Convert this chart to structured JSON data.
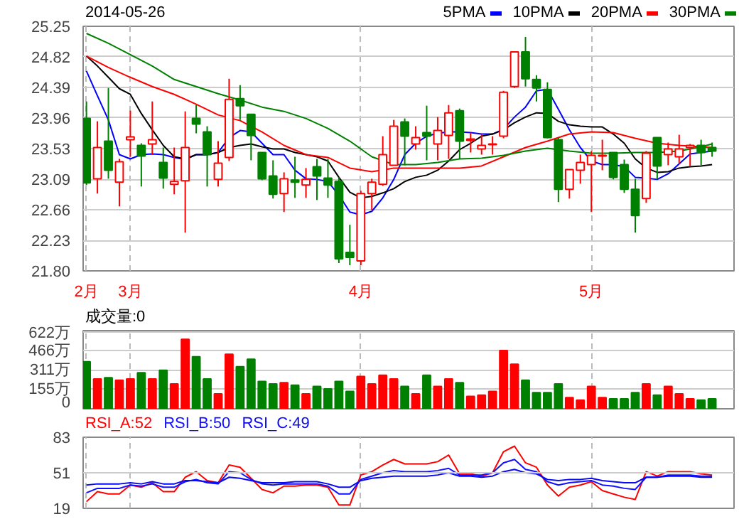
{
  "chart_data": [
    {
      "type": "candlestick",
      "title": "2014-05-26",
      "legend": "top right",
      "grid": true,
      "categories": [
        "2月",
        null,
        null,
        null,
        "3月",
        null,
        null,
        null,
        null,
        null,
        null,
        null,
        null,
        null,
        null,
        null,
        null,
        null,
        null,
        null,
        null,
        null,
        null,
        null,
        null,
        "4月",
        null,
        null,
        null,
        null,
        null,
        null,
        null,
        null,
        null,
        null,
        null,
        null,
        null,
        null,
        null,
        null,
        null,
        null,
        null,
        null,
        "5月",
        null,
        null,
        null,
        null,
        null,
        null,
        null,
        null,
        null,
        null,
        null
      ],
      "ohlc": [
        [
          23.95,
          24.19,
          23.01,
          23.04
        ],
        [
          23.1,
          23.91,
          22.89,
          23.54
        ],
        [
          23.63,
          24.38,
          23.1,
          23.22
        ],
        [
          23.05,
          23.38,
          22.71,
          23.34
        ],
        [
          23.65,
          24.06,
          23.41,
          23.69
        ],
        [
          23.57,
          23.6,
          22.99,
          23.42
        ],
        [
          23.59,
          24.19,
          23.44,
          23.65
        ],
        [
          23.33,
          23.54,
          22.96,
          23.11
        ],
        [
          23.02,
          23.54,
          22.88,
          23.06
        ],
        [
          23.07,
          24.05,
          22.34,
          23.54
        ],
        [
          23.95,
          24.14,
          23.74,
          23.87
        ],
        [
          23.76,
          23.84,
          22.99,
          23.44
        ],
        [
          23.09,
          23.63,
          22.99,
          23.32
        ],
        [
          23.4,
          24.51,
          23.35,
          24.22
        ],
        [
          24.23,
          24.42,
          23.93,
          24.13
        ],
        [
          24.01,
          24.01,
          23.36,
          23.71
        ],
        [
          23.47,
          23.47,
          23.08,
          23.1
        ],
        [
          23.14,
          23.36,
          22.82,
          22.88
        ],
        [
          22.89,
          23.19,
          22.63,
          23.1
        ],
        [
          23.08,
          23.41,
          22.83,
          23.05
        ],
        [
          23.01,
          23.25,
          22.83,
          23.09
        ],
        [
          23.27,
          23.38,
          22.8,
          23.14
        ],
        [
          23.11,
          23.38,
          22.83,
          23.01
        ],
        [
          23.06,
          23.12,
          21.91,
          21.97
        ],
        [
          22.06,
          22.45,
          21.88,
          21.99
        ],
        [
          21.94,
          22.93,
          21.88,
          22.89
        ],
        [
          22.89,
          23.1,
          22.66,
          23.05
        ],
        [
          23.02,
          23.7,
          23.0,
          23.44
        ],
        [
          23.29,
          23.93,
          23.29,
          23.84
        ],
        [
          23.9,
          23.95,
          23.29,
          23.7
        ],
        [
          23.59,
          23.84,
          23.51,
          23.68
        ],
        [
          23.75,
          24.13,
          23.36,
          23.7
        ],
        [
          23.59,
          23.97,
          23.36,
          23.78
        ],
        [
          23.71,
          24.14,
          23.38,
          24.03
        ],
        [
          24.06,
          24.09,
          23.38,
          23.63
        ],
        [
          23.64,
          23.75,
          23.47,
          23.66
        ],
        [
          23.52,
          23.73,
          23.44,
          23.57
        ],
        [
          23.58,
          23.7,
          23.44,
          23.59
        ],
        [
          23.7,
          24.34,
          23.67,
          24.32
        ],
        [
          24.4,
          24.89,
          24.38,
          24.89
        ],
        [
          24.89,
          25.1,
          24.4,
          24.51
        ],
        [
          24.5,
          24.56,
          24.19,
          24.38
        ],
        [
          24.36,
          24.46,
          23.67,
          23.68
        ],
        [
          23.65,
          23.68,
          22.77,
          22.95
        ],
        [
          22.95,
          23.23,
          22.82,
          23.23
        ],
        [
          23.22,
          23.44,
          23.03,
          23.33
        ],
        [
          23.3,
          23.49,
          22.63,
          23.43
        ],
        [
          23.42,
          23.65,
          23.22,
          23.43
        ],
        [
          23.47,
          23.47,
          23.09,
          23.12
        ],
        [
          23.3,
          23.37,
          22.9,
          22.95
        ],
        [
          22.95,
          23.1,
          22.34,
          22.58
        ],
        [
          22.82,
          23.49,
          22.76,
          23.46
        ],
        [
          23.68,
          23.68,
          23.09,
          23.28
        ],
        [
          23.44,
          23.61,
          23.29,
          23.52
        ],
        [
          23.41,
          23.72,
          23.31,
          23.52
        ],
        [
          23.54,
          23.59,
          23.28,
          23.57
        ],
        [
          23.57,
          23.65,
          23.29,
          23.47
        ],
        [
          23.54,
          23.61,
          23.41,
          23.49
        ]
      ],
      "colors": [
        "#008000",
        "#ff0000",
        "#008000",
        "#ff0000",
        "#ff0000",
        "#008000",
        "#ff0000",
        "#008000",
        "#ff0000",
        "#ff0000",
        "#008000",
        "#008000",
        "#ff0000",
        "#ff0000",
        "#008000",
        "#008000",
        "#008000",
        "#008000",
        "#ff0000",
        "#008000",
        "#ff0000",
        "#008000",
        "#008000",
        "#008000",
        "#008000",
        "#ff0000",
        "#ff0000",
        "#ff0000",
        "#ff0000",
        "#008000",
        "#ff0000",
        "#008000",
        "#ff0000",
        "#ff0000",
        "#008000",
        "#ff0000",
        "#ff0000",
        "#ff0000",
        "#ff0000",
        "#ff0000",
        "#008000",
        "#008000",
        "#008000",
        "#008000",
        "#ff0000",
        "#ff0000",
        "#ff0000",
        "#ff0000",
        "#008000",
        "#008000",
        "#008000",
        "#ff0000",
        "#008000",
        "#ff0000",
        "#ff0000",
        "#ff0000",
        "#008000",
        "#008000"
      ],
      "series": [
        {
          "type": "line",
          "name": "5PMA",
          "color": "#0000ff",
          "values": [
            24.62,
            24.27,
            23.93,
            23.44,
            23.38,
            23.44,
            23.45,
            23.44,
            23.4,
            23.37,
            23.44,
            23.44,
            23.47,
            23.68,
            23.78,
            23.76,
            23.6,
            23.44,
            23.44,
            23.22,
            23.1,
            23.09,
            23.06,
            22.87,
            22.63,
            22.59,
            22.64,
            22.83,
            23.09,
            23.44,
            23.6,
            23.7,
            23.74,
            23.76,
            23.76,
            23.75,
            23.73,
            23.73,
            23.8,
            23.97,
            24.11,
            24.34,
            24.36,
            24.08,
            23.79,
            23.54,
            23.35,
            23.3,
            23.3,
            23.27,
            23.12,
            23.11,
            23.09,
            23.17,
            23.31,
            23.45,
            23.47,
            23.49
          ]
        },
        {
          "type": "line",
          "name": "10PMA",
          "color": "#000000",
          "values": [
            24.83,
            24.69,
            24.53,
            24.37,
            24.29,
            24.02,
            23.79,
            23.57,
            23.41,
            23.38,
            23.44,
            23.44,
            23.47,
            23.54,
            23.57,
            23.59,
            23.55,
            23.52,
            23.52,
            23.47,
            23.44,
            23.41,
            23.35,
            23.12,
            22.91,
            22.83,
            22.85,
            22.9,
            22.96,
            23.06,
            23.12,
            23.15,
            23.22,
            23.35,
            23.51,
            23.6,
            23.7,
            23.73,
            23.79,
            23.89,
            23.97,
            24.03,
            24.02,
            23.91,
            23.86,
            23.84,
            23.83,
            23.83,
            23.73,
            23.6,
            23.38,
            23.25,
            23.19,
            23.2,
            23.25,
            23.27,
            23.28,
            23.3
          ]
        },
        {
          "type": "line",
          "name": "20PMA",
          "color": "#ff0000",
          "values": [
            24.83,
            null,
            24.67,
            null,
            24.53,
            null,
            24.4,
            null,
            24.29,
            null,
            24.15,
            null,
            24.0,
            null,
            23.92,
            null,
            23.76,
            null,
            23.57,
            null,
            23.44,
            null,
            23.4,
            null,
            23.25,
            null,
            23.2,
            null,
            23.25,
            null,
            23.25,
            null,
            23.25,
            null,
            23.25,
            null,
            23.28,
            null,
            23.41,
            null,
            23.54,
            null,
            23.63,
            null,
            23.73,
            null,
            23.76,
            null,
            23.75,
            null,
            23.67,
            null,
            23.6,
            null,
            23.57,
            null,
            23.55,
            23.54
          ]
        },
        {
          "type": "line",
          "name": "30PMA",
          "color": "#008000",
          "values": [
            25.15,
            null,
            25.01,
            null,
            24.85,
            null,
            24.69,
            null,
            24.5,
            null,
            24.4,
            null,
            24.3,
            null,
            24.21,
            null,
            24.11,
            null,
            24.05,
            null,
            23.95,
            null,
            23.81,
            null,
            23.63,
            null,
            23.41,
            null,
            23.3,
            null,
            23.3,
            null,
            23.33,
            null,
            23.38,
            null,
            23.39,
            null,
            23.43,
            null,
            23.49,
            null,
            23.53,
            null,
            23.49,
            null,
            23.46,
            null,
            23.46,
            null,
            23.47,
            null,
            23.47,
            null,
            23.49,
            null,
            23.55,
            23.59
          ]
        }
      ],
      "ylim": [
        21.8,
        25.25
      ],
      "yticks": [
        {
          "value": 21.8,
          "label": "21.80"
        },
        22.23,
        22.66,
        23.09,
        23.53,
        23.96,
        24.39,
        24.82,
        25.25
      ]
    },
    {
      "type": "bar",
      "title": "成交量:0",
      "grid": true,
      "tick_labels": "y",
      "categories": [
        null,
        null,
        null,
        null,
        null,
        null,
        null,
        null,
        null,
        null,
        null,
        null,
        null,
        null,
        null,
        null,
        null,
        null,
        null,
        null,
        null,
        null,
        null,
        null,
        null,
        null,
        null,
        null,
        null,
        null,
        null,
        null,
        null,
        null,
        null,
        null,
        null,
        null,
        null,
        null,
        null,
        null,
        null,
        null,
        null,
        null,
        null,
        null,
        null,
        null,
        null,
        null,
        null,
        null,
        null,
        null,
        null,
        null
      ],
      "values": [
        380,
        240,
        250,
        230,
        240,
        290,
        240,
        310,
        200,
        560,
        420,
        240,
        120,
        440,
        340,
        400,
        220,
        200,
        210,
        190,
        120,
        180,
        160,
        220,
        140,
        260,
        200,
        270,
        240,
        180,
        120,
        270,
        180,
        240,
        210,
        100,
        110,
        140,
        470,
        360,
        230,
        130,
        130,
        200,
        90,
        70,
        180,
        90,
        80,
        80,
        130,
        200,
        110,
        180,
        120,
        80,
        70,
        80
      ],
      "colors": [
        "#008000",
        "#ff0000",
        "#008000",
        "#ff0000",
        "#ff0000",
        "#008000",
        "#ff0000",
        "#008000",
        "#ff0000",
        "#ff0000",
        "#008000",
        "#008000",
        "#ff0000",
        "#ff0000",
        "#008000",
        "#008000",
        "#008000",
        "#008000",
        "#ff0000",
        "#008000",
        "#ff0000",
        "#008000",
        "#008000",
        "#008000",
        "#008000",
        "#ff0000",
        "#ff0000",
        "#ff0000",
        "#ff0000",
        "#008000",
        "#ff0000",
        "#008000",
        "#ff0000",
        "#ff0000",
        "#008000",
        "#ff0000",
        "#ff0000",
        "#ff0000",
        "#ff0000",
        "#ff0000",
        "#008000",
        "#008000",
        "#008000",
        "#008000",
        "#ff0000",
        "#ff0000",
        "#ff0000",
        "#ff0000",
        "#008000",
        "#008000",
        "#008000",
        "#ff0000",
        "#008000",
        "#ff0000",
        "#ff0000",
        "#ff0000",
        "#008000",
        "#008000"
      ],
      "ylim": [
        0,
        630
      ],
      "yticks": [
        0,
        {
          "value": 155,
          "label": "155万"
        },
        {
          "value": 311,
          "label": "311万"
        },
        {
          "value": 466,
          "label": "466万"
        },
        {
          "value": 622,
          "label": "622万"
        }
      ]
    },
    {
      "type": "line",
      "grid": "x",
      "tick_labels": "y",
      "ref_lines": [
        {
          "axis": "y",
          "value": 51,
          "color": "#cccccc"
        }
      ],
      "categories": [
        null,
        null,
        null,
        null,
        null,
        null,
        null,
        null,
        null,
        null,
        null,
        null,
        null,
        null,
        null,
        null,
        null,
        null,
        null,
        null,
        null,
        null,
        null,
        null,
        null,
        null,
        null,
        null,
        null,
        null,
        null,
        null,
        null,
        null,
        null,
        null,
        null,
        null,
        null,
        null,
        null,
        null,
        null,
        null,
        null,
        null,
        null,
        null,
        null,
        null,
        null,
        null,
        null,
        null,
        null,
        null,
        null,
        null
      ],
      "series": [
        {
          "name": "RSI_A:52",
          "color": "#ff0000",
          "values": [
            25,
            34,
            32,
            32,
            40,
            38,
            42,
            34,
            34,
            47,
            52,
            44,
            42,
            58,
            56,
            46,
            36,
            33,
            39,
            39,
            40,
            40,
            38,
            22,
            22,
            49,
            52,
            58,
            63,
            59,
            59,
            59,
            61,
            67,
            50,
            50,
            48,
            51,
            70,
            75,
            60,
            56,
            40,
            30,
            38,
            40,
            43,
            35,
            32,
            29,
            27,
            52,
            48,
            52,
            52,
            52,
            50,
            49
          ]
        },
        {
          "name": "RSI_B:50",
          "color": "#1010ff",
          "values": [
            33,
            37,
            37,
            37,
            40,
            39,
            41,
            38,
            38,
            43,
            45,
            42,
            41,
            52,
            51,
            45,
            41,
            40,
            41,
            41,
            41,
            41,
            39,
            32,
            32,
            45,
            48,
            51,
            53,
            52,
            52,
            52,
            53,
            55,
            49,
            49,
            49,
            51,
            60,
            63,
            54,
            52,
            43,
            40,
            42,
            43,
            44,
            40,
            39,
            37,
            36,
            47,
            47,
            49,
            49,
            49,
            48,
            48
          ]
        },
        {
          "name": "RSI_C:49",
          "color": "#0a0af0",
          "values": [
            40,
            41,
            41,
            41,
            42,
            41,
            43,
            41,
            41,
            44,
            44,
            43,
            42,
            47,
            46,
            44,
            42,
            42,
            42,
            43,
            43,
            43,
            41,
            38,
            38,
            44,
            46,
            47,
            48,
            48,
            48,
            48,
            49,
            51,
            48,
            48,
            47,
            48,
            52,
            54,
            51,
            50,
            45,
            44,
            45,
            45,
            46,
            44,
            43,
            42,
            42,
            47,
            47,
            48,
            48,
            48,
            47,
            47
          ]
        }
      ],
      "ylim": [
        19,
        83
      ],
      "yticks": [
        19,
        51,
        83
      ]
    }
  ]
}
